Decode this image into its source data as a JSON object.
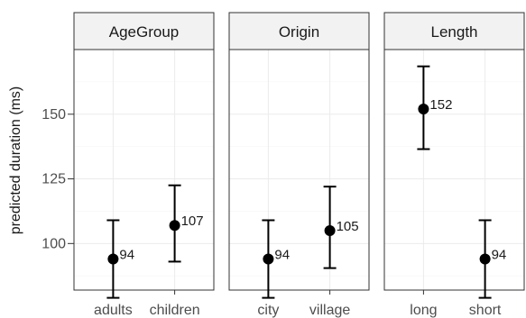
{
  "chart_data": {
    "type": "scatter",
    "ylabel": "predicted duration (ms)",
    "ylim": [
      82,
      175
    ],
    "y_ticks": [
      100,
      125,
      150
    ],
    "grid": true,
    "facets": [
      {
        "title": "AgeGroup",
        "categories": [
          "adults",
          "children"
        ],
        "points": [
          {
            "category": "adults",
            "value": 94,
            "lower": 79,
            "upper": 109,
            "label": "94"
          },
          {
            "category": "children",
            "value": 107,
            "lower": 93,
            "upper": 122.5,
            "label": "107"
          }
        ]
      },
      {
        "title": "Origin",
        "categories": [
          "city",
          "village"
        ],
        "points": [
          {
            "category": "city",
            "value": 94,
            "lower": 79,
            "upper": 109,
            "label": "94"
          },
          {
            "category": "village",
            "value": 105,
            "lower": 90.5,
            "upper": 122,
            "label": "105"
          }
        ]
      },
      {
        "title": "Length",
        "categories": [
          "long",
          "short"
        ],
        "points": [
          {
            "category": "long",
            "value": 152,
            "lower": 136.5,
            "upper": 168.5,
            "label": "152"
          },
          {
            "category": "short",
            "value": 94,
            "lower": 79,
            "upper": 109,
            "label": "94"
          }
        ]
      }
    ]
  }
}
